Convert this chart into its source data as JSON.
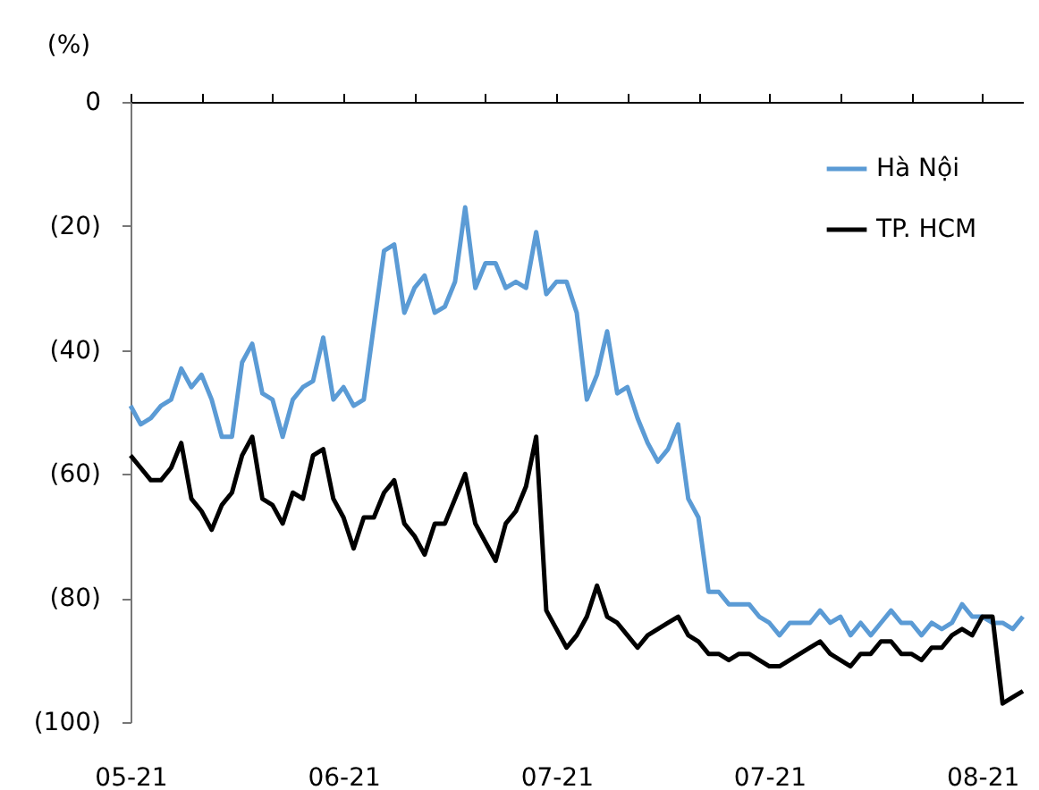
{
  "chart_data": {
    "type": "line",
    "ylabel": "(%)",
    "categories": [
      "05-21",
      null,
      null,
      null,
      null,
      null,
      null,
      null,
      null,
      null,
      null,
      null,
      null,
      null,
      null,
      null,
      null,
      null,
      null,
      null,
      null,
      "06-21",
      null,
      null,
      null,
      null,
      null,
      null,
      null,
      null,
      null,
      null,
      null,
      null,
      null,
      null,
      null,
      null,
      null,
      null,
      null,
      null,
      "07-21",
      null,
      null,
      null,
      null,
      null,
      null,
      null,
      null,
      null,
      null,
      null,
      null,
      null,
      null,
      null,
      null,
      null,
      null,
      null,
      null,
      "07-21",
      null,
      null,
      null,
      null,
      null,
      null,
      null,
      null,
      null,
      null,
      null,
      null,
      null,
      null,
      null,
      null,
      null,
      null,
      null,
      null,
      "08-21",
      null,
      null,
      null,
      null
    ],
    "series": [
      {
        "name": "Hà Nội",
        "color": "#5b9bd5",
        "values": [
          -49,
          -52,
          -51,
          -49,
          -48,
          -43,
          -46,
          -44,
          -48,
          -54,
          -54,
          -42,
          -39,
          -47,
          -48,
          -54,
          -48,
          -46,
          -45,
          -38,
          -48,
          -46,
          -49,
          -48,
          -36,
          -24,
          -23,
          -34,
          -30,
          -28,
          -34,
          -33,
          -29,
          -17,
          -30,
          -26,
          -26,
          -30,
          -29,
          -30,
          -21,
          -31,
          -29,
          -29,
          -34,
          -48,
          -44,
          -37,
          -47,
          -46,
          -51,
          -55,
          -58,
          -56,
          -52,
          -64,
          -67,
          -79,
          -79,
          -81,
          -81,
          -81,
          -83,
          -84,
          -86,
          -84,
          -84,
          -84,
          -82,
          -84,
          -83,
          -86,
          -84,
          -86,
          -84,
          -82,
          -84,
          -84,
          -86,
          -84,
          -85,
          -84,
          -81,
          -83,
          -83,
          -84,
          -84,
          -85,
          -83
        ]
      },
      {
        "name": "TP. HCM",
        "color": "#000000",
        "values": [
          -57,
          -59,
          -61,
          -61,
          -59,
          -55,
          -64,
          -66,
          -69,
          -65,
          -63,
          -57,
          -54,
          -64,
          -65,
          -68,
          -63,
          -64,
          -57,
          -56,
          -64,
          -67,
          -72,
          -67,
          -67,
          -63,
          -61,
          -68,
          -70,
          -73,
          -68,
          -68,
          -64,
          -60,
          -68,
          -71,
          -74,
          -68,
          -66,
          -62,
          -54,
          -82,
          -85,
          -88,
          -86,
          -83,
          -78,
          -83,
          -84,
          -86,
          -88,
          -86,
          -85,
          -84,
          -83,
          -86,
          -87,
          -89,
          -89,
          -90,
          -89,
          -89,
          -90,
          -91,
          -91,
          -90,
          -89,
          -88,
          -87,
          -89,
          -90,
          -91,
          -89,
          -89,
          -87,
          -87,
          -89,
          -89,
          -90,
          -88,
          -88,
          -86,
          -85,
          -86,
          -83,
          -83,
          -97,
          -96,
          -95
        ]
      }
    ],
    "ylim": [
      -100,
      0
    ],
    "yticks": [
      {
        "value": 0,
        "label": "0"
      },
      {
        "value": -20,
        "label": "(20)"
      },
      {
        "value": -40,
        "label": "(40)"
      },
      {
        "value": -60,
        "label": "(60)"
      },
      {
        "value": -80,
        "label": "(80)"
      },
      {
        "value": -100,
        "label": "(100)"
      }
    ],
    "legend": "top right",
    "line_style": "solid"
  }
}
